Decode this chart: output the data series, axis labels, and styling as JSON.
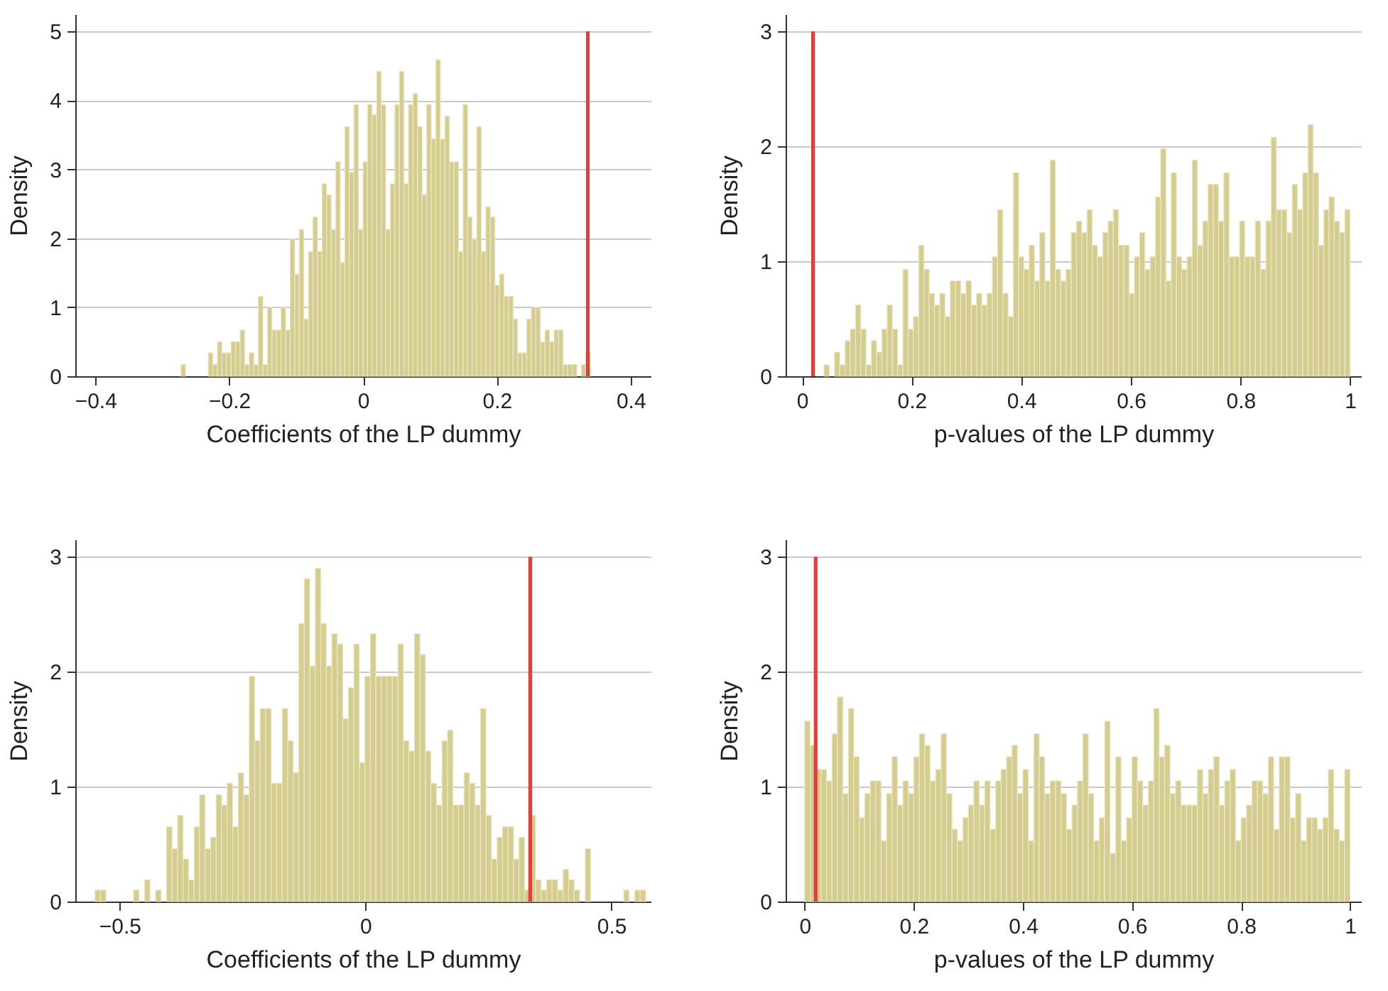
{
  "chart_data": [
    {
      "type": "histogram",
      "xlabel": "Coefficients of the LP dummy",
      "ylabel": "Density",
      "color": "#d4cd8f",
      "grid": "y",
      "bins": [
        -0.272,
        -0.2652,
        -0.2584,
        -0.2516,
        -0.2448,
        -0.238,
        -0.2312,
        -0.2244,
        -0.2176,
        -0.2108,
        -0.204,
        -0.1972,
        -0.1904,
        -0.1836,
        -0.1768,
        -0.17,
        -0.1632,
        -0.1564,
        -0.1496,
        -0.1428,
        -0.136,
        -0.1292,
        -0.1224,
        -0.1156,
        -0.1088,
        -0.102,
        -0.0952,
        -0.0884,
        -0.0816,
        -0.0748,
        -0.068,
        -0.0612,
        -0.0544,
        -0.0476,
        -0.0408,
        -0.034,
        -0.0272,
        -0.0204,
        -0.0136,
        -0.0068,
        0,
        0.0068,
        0.0136,
        0.0204,
        0.0272,
        0.034,
        0.0408,
        0.0476,
        0.0544,
        0.0612,
        0.068,
        0.0748,
        0.0816,
        0.0884,
        0.0952,
        0.102,
        0.1088,
        0.1156,
        0.1224,
        0.1292,
        0.136,
        0.1428,
        0.1496,
        0.1564,
        0.1632,
        0.17,
        0.1768,
        0.1836,
        0.1904,
        0.1972,
        0.204,
        0.2108,
        0.2176,
        0.2244,
        0.2312,
        0.238,
        0.2448,
        0.2516,
        0.2584,
        0.2652,
        0.272,
        0.2788,
        0.2856,
        0.2924,
        0.2992,
        0.306,
        0.3128,
        0.3196,
        0.3264,
        0.3332,
        0.34
      ],
      "values": [
        0.17,
        0,
        0,
        0,
        0,
        0,
        0.34,
        0.17,
        0.5,
        0.34,
        0.34,
        0.5,
        0.5,
        0.67,
        0.17,
        0.34,
        0.17,
        1.16,
        0.17,
        1.0,
        0.67,
        0.67,
        1.0,
        0.67,
        1.98,
        1.48,
        2.13,
        0.83,
        1.81,
        2.31,
        1.81,
        2.79,
        2.63,
        2.13,
        3.11,
        1.65,
        3.62,
        2.96,
        3.94,
        2.13,
        3.11,
        3.94,
        3.79,
        4.42,
        3.94,
        2.13,
        2.79,
        3.94,
        4.42,
        2.79,
        3.94,
        4.1,
        3.62,
        2.63,
        3.94,
        3.44,
        4.59,
        3.44,
        3.77,
        3.11,
        3.11,
        1.81,
        3.94,
        2.31,
        1.98,
        3.62,
        1.81,
        2.46,
        2.31,
        1.32,
        1.48,
        1.16,
        1.16,
        0.83,
        0.34,
        0.34,
        0.83,
        1.0,
        1.0,
        0.5,
        0.67,
        0.5,
        0.67,
        0.67,
        0.17,
        0.17,
        0.17,
        0,
        0.17,
        0.34
      ],
      "xlim": [
        -0.43,
        0.43
      ],
      "xticks": [
        -0.4,
        -0.2,
        0,
        0.2,
        0.4
      ],
      "ylim": [
        0,
        5.25
      ],
      "yticks": [
        0,
        1,
        2,
        3,
        4,
        5
      ],
      "ref_lines": [
        {
          "axis": "x",
          "value": 0.336,
          "color": "#e0403a"
        }
      ]
    },
    {
      "type": "histogram",
      "xlabel": "p-values of the LP dummy",
      "ylabel": "Density",
      "color": "#d4cd8f",
      "grid": "y",
      "bins": [
        0.04,
        0.0496,
        0.0592,
        0.0688,
        0.0784,
        0.088,
        0.0976,
        0.1072,
        0.1168,
        0.1264,
        0.136,
        0.1456,
        0.1552,
        0.1648,
        0.1744,
        0.184,
        0.1936,
        0.2032,
        0.2128,
        0.2224,
        0.232,
        0.2416,
        0.2512,
        0.2608,
        0.2704,
        0.28,
        0.2896,
        0.2992,
        0.3088,
        0.3184,
        0.328,
        0.3376,
        0.3472,
        0.3568,
        0.3664,
        0.376,
        0.3856,
        0.3952,
        0.4048,
        0.4144,
        0.424,
        0.4336,
        0.4432,
        0.4528,
        0.4624,
        0.472,
        0.4816,
        0.4912,
        0.5008,
        0.5104,
        0.52,
        0.5296,
        0.5392,
        0.5488,
        0.5584,
        0.568,
        0.5776,
        0.5872,
        0.5968,
        0.6064,
        0.616,
        0.6256,
        0.6352,
        0.6448,
        0.6544,
        0.664,
        0.6736,
        0.6832,
        0.6928,
        0.7024,
        0.712,
        0.7216,
        0.7312,
        0.7408,
        0.7504,
        0.76,
        0.7696,
        0.7792,
        0.7888,
        0.7984,
        0.808,
        0.8176,
        0.8272,
        0.8368,
        0.8464,
        0.856,
        0.8656,
        0.8752,
        0.8848,
        0.8944,
        0.904,
        0.9136,
        0.9232,
        0.9328,
        0.9424,
        0.952,
        0.9616,
        0.9712,
        0.9808,
        0.9904,
        1.0
      ],
      "values": [
        0.1,
        0,
        0.21,
        0.1,
        0.31,
        0.41,
        0.62,
        0.41,
        0.1,
        0.31,
        0.21,
        0.41,
        0.62,
        0.41,
        0.1,
        0.93,
        0.41,
        0.52,
        1.14,
        0.93,
        0.72,
        0.62,
        0.72,
        0.52,
        0.83,
        0.83,
        0.72,
        0.83,
        0.62,
        0.72,
        0.62,
        0.72,
        1.04,
        1.45,
        0.72,
        0.52,
        1.77,
        1.04,
        0.93,
        1.14,
        0.83,
        1.25,
        0.83,
        1.88,
        0.93,
        0.83,
        0.93,
        1.25,
        1.35,
        1.25,
        1.45,
        1.14,
        1.04,
        1.25,
        1.35,
        1.45,
        1.14,
        1.14,
        0.72,
        1.04,
        1.25,
        0.93,
        1.04,
        1.56,
        1.98,
        0.83,
        1.77,
        1.04,
        0.93,
        1.04,
        1.88,
        1.14,
        1.35,
        1.67,
        1.67,
        1.35,
        1.77,
        1.04,
        1.04,
        1.35,
        1.04,
        1.04,
        1.35,
        0.93,
        1.35,
        2.08,
        1.45,
        1.45,
        1.25,
        1.67,
        1.45,
        1.77,
        2.19,
        1.77,
        1.14,
        1.45,
        1.56,
        1.35,
        1.25,
        1.45
      ],
      "xlim": [
        -0.03,
        1.02
      ],
      "xticks": [
        0,
        0.2,
        0.4,
        0.6,
        0.8,
        1
      ],
      "ylim": [
        0,
        3.15
      ],
      "yticks": [
        0,
        1,
        2,
        3
      ],
      "ref_lines": [
        {
          "axis": "x",
          "value": 0.02,
          "color": "#e0403a"
        }
      ]
    },
    {
      "type": "histogram",
      "xlabel": "Coefficients of the LP dummy",
      "ylabel": "Density",
      "color": "#d4cd8f",
      "grid": "y",
      "bins": [
        -0.55,
        -0.5388,
        -0.5276,
        -0.5164,
        -0.5052,
        -0.494,
        -0.4828,
        -0.4716,
        -0.4604,
        -0.4492,
        -0.438,
        -0.4268,
        -0.4156,
        -0.4044,
        -0.3932,
        -0.382,
        -0.3708,
        -0.3596,
        -0.3484,
        -0.3372,
        -0.326,
        -0.3148,
        -0.3036,
        -0.2924,
        -0.2812,
        -0.27,
        -0.2588,
        -0.2476,
        -0.2364,
        -0.2252,
        -0.214,
        -0.2028,
        -0.1916,
        -0.1804,
        -0.1692,
        -0.158,
        -0.1468,
        -0.1356,
        -0.1244,
        -0.1132,
        -0.102,
        -0.0908,
        -0.0796,
        -0.0684,
        -0.0572,
        -0.046,
        -0.0348,
        -0.0236,
        -0.0124,
        -0.0012,
        0.01,
        0.0212,
        0.0324,
        0.0436,
        0.0548,
        0.066,
        0.0772,
        0.0884,
        0.0996,
        0.1108,
        0.122,
        0.1332,
        0.1444,
        0.1556,
        0.1668,
        0.178,
        0.1892,
        0.2004,
        0.2116,
        0.2228,
        0.234,
        0.2452,
        0.2564,
        0.2676,
        0.2788,
        0.29,
        0.3012,
        0.3124,
        0.3236,
        0.3348,
        0.346,
        0.3572,
        0.3684,
        0.3796,
        0.3908,
        0.402,
        0.4132,
        0.4244,
        0.4356,
        0.4468,
        0.458,
        0.4692,
        0.4804,
        0.4916,
        0.5028,
        0.514,
        0.5252,
        0.5364,
        0.5476,
        0.5588,
        0.57
      ],
      "values": [
        0.1,
        0.1,
        0,
        0,
        0,
        0,
        0,
        0.1,
        0,
        0.19,
        0,
        0.1,
        0,
        0.65,
        0.46,
        0.75,
        0.37,
        0.19,
        0.65,
        0.93,
        0.46,
        0.56,
        0.93,
        0.84,
        1.03,
        0.65,
        1.12,
        0.93,
        1.96,
        1.4,
        1.68,
        1.68,
        1.03,
        1.03,
        1.68,
        1.4,
        1.12,
        2.42,
        2.81,
        2.05,
        2.9,
        2.42,
        2.05,
        2.33,
        2.24,
        1.59,
        1.86,
        2.24,
        1.21,
        1.96,
        2.33,
        1.96,
        1.96,
        1.96,
        1.96,
        2.24,
        1.4,
        1.31,
        2.33,
        2.15,
        1.31,
        1.03,
        0.84,
        1.4,
        1.49,
        0.84,
        0.84,
        1.12,
        1.03,
        0.84,
        1.68,
        0.75,
        0.37,
        0.56,
        0.65,
        0.65,
        0.37,
        0.56,
        0.1,
        0.75,
        0.19,
        0.1,
        0.19,
        0.19,
        0.1,
        0.28,
        0.19,
        0.1,
        0,
        0.46,
        0,
        0,
        0,
        0,
        0,
        0,
        0.1,
        0,
        0.1,
        0.1
      ],
      "xlim": [
        -0.59,
        0.58
      ],
      "xticks": [
        -0.5,
        0,
        0.5
      ],
      "ylim": [
        0,
        3.15
      ],
      "yticks": [
        0,
        1,
        2,
        3
      ],
      "ref_lines": [
        {
          "axis": "x",
          "value": 0.335,
          "color": "#e0403a"
        }
      ]
    },
    {
      "type": "histogram",
      "xlabel": "p-values of the LP dummy",
      "ylabel": "Density",
      "color": "#d4cd8f",
      "grid": "y",
      "bins": [
        0,
        0.01,
        0.02,
        0.03,
        0.04,
        0.05,
        0.06,
        0.07,
        0.08,
        0.09,
        0.1,
        0.11,
        0.12,
        0.13,
        0.14,
        0.15,
        0.16,
        0.17,
        0.18,
        0.19,
        0.2,
        0.21,
        0.22,
        0.23,
        0.24,
        0.25,
        0.26,
        0.27,
        0.28,
        0.29,
        0.3,
        0.31,
        0.32,
        0.33,
        0.34,
        0.35,
        0.36,
        0.37,
        0.38,
        0.39,
        0.4,
        0.41,
        0.42,
        0.43,
        0.44,
        0.45,
        0.46,
        0.47,
        0.48,
        0.49,
        0.5,
        0.51,
        0.52,
        0.53,
        0.54,
        0.55,
        0.56,
        0.57,
        0.58,
        0.59,
        0.6,
        0.61,
        0.62,
        0.63,
        0.64,
        0.65,
        0.66,
        0.67,
        0.68,
        0.69,
        0.7,
        0.71,
        0.72,
        0.73,
        0.74,
        0.75,
        0.76,
        0.77,
        0.78,
        0.79,
        0.8,
        0.81,
        0.82,
        0.83,
        0.84,
        0.85,
        0.86,
        0.87,
        0.88,
        0.89,
        0.9,
        0.91,
        0.92,
        0.93,
        0.94,
        0.95,
        0.96,
        0.97,
        0.98,
        0.99,
        1
      ],
      "values": [
        1.57,
        1.36,
        1.15,
        1.15,
        1.05,
        1.46,
        1.78,
        0.94,
        1.68,
        1.26,
        0.73,
        0.94,
        1.05,
        1.05,
        0.53,
        0.94,
        1.26,
        0.84,
        1.05,
        0.94,
        1.26,
        1.46,
        1.36,
        1.05,
        1.15,
        1.46,
        0.94,
        0.63,
        0.53,
        0.73,
        0.84,
        1.05,
        0.84,
        1.05,
        0.63,
        1.05,
        1.15,
        1.26,
        1.36,
        0.94,
        1.15,
        0.53,
        1.46,
        1.26,
        0.94,
        1.05,
        1.05,
        0.94,
        0.63,
        0.84,
        1.05,
        1.46,
        0.94,
        0.53,
        0.73,
        1.57,
        0.42,
        1.26,
        0.53,
        0.73,
        1.26,
        1.05,
        0.84,
        1.05,
        1.68,
        1.26,
        1.36,
        0.94,
        1.05,
        0.84,
        0.84,
        0.84,
        1.15,
        0.94,
        1.15,
        1.26,
        0.84,
        1.05,
        1.15,
        0.53,
        0.73,
        0.84,
        1.05,
        1.05,
        0.94,
        1.26,
        0.63,
        1.26,
        1.26,
        0.73,
        0.94,
        0.53,
        0.73,
        0.73,
        0.63,
        0.73,
        1.15,
        0.63,
        0.53,
        1.15
      ],
      "xlim": [
        -0.035,
        1.02
      ],
      "xticks": [
        0,
        0.2,
        0.4,
        0.6,
        0.8,
        1
      ],
      "ylim": [
        0,
        3.15
      ],
      "yticks": [
        0,
        1,
        2,
        3
      ],
      "ref_lines": [
        {
          "axis": "x",
          "value": 0.02,
          "color": "#e0403a"
        }
      ]
    }
  ]
}
